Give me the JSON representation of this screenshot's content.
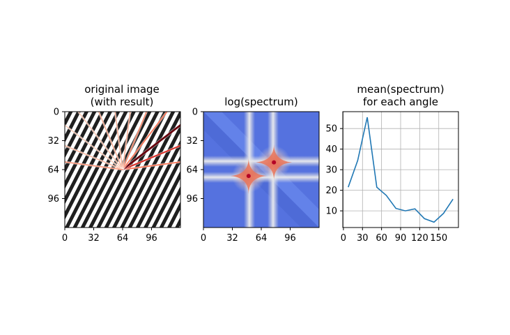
{
  "chart_data": [
    {
      "type": "heatmap",
      "title_lines": [
        "original image",
        "(with result)"
      ],
      "x_ticks": [
        0,
        32,
        64,
        96
      ],
      "y_ticks": [
        0,
        32,
        64,
        96
      ],
      "xlim": [
        0,
        128
      ],
      "ylim": [
        0,
        128
      ],
      "image": "diagonal sinusoidal stripe pattern (grayscale)",
      "overlay": "rays from (64, 64) at each sampled angle, colored by mean spectrum",
      "colormap": "Reds"
    },
    {
      "type": "heatmap",
      "title_lines": [
        "log(spectrum)"
      ],
      "x_ticks": [
        0,
        32,
        64,
        96
      ],
      "y_ticks": [
        0,
        32,
        64,
        96
      ],
      "xlim": [
        0,
        128
      ],
      "ylim": [
        0,
        128
      ],
      "colormap": "coolwarm",
      "peaks": [
        [
          50,
          71
        ],
        [
          78,
          56
        ]
      ]
    },
    {
      "type": "line",
      "title_lines": [
        "mean(spectrum)",
        "for each angle"
      ],
      "x": [
        7.5,
        22.5,
        37.5,
        52.5,
        67.5,
        82.5,
        97.5,
        112.5,
        127.5,
        142.5,
        157.5,
        172.5
      ],
      "y": [
        21.5,
        34.5,
        55.5,
        21.5,
        17.5,
        11.2,
        10.0,
        11.0,
        6.2,
        4.5,
        8.8,
        15.7
      ],
      "x_ticks": [
        0,
        30,
        60,
        90,
        120,
        150
      ],
      "y_ticks": [
        10,
        20,
        30,
        40,
        50
      ],
      "xlim": [
        -1,
        181
      ],
      "ylim": [
        1.9,
        58.2
      ],
      "grid": true,
      "color": "#1f77b4"
    }
  ]
}
